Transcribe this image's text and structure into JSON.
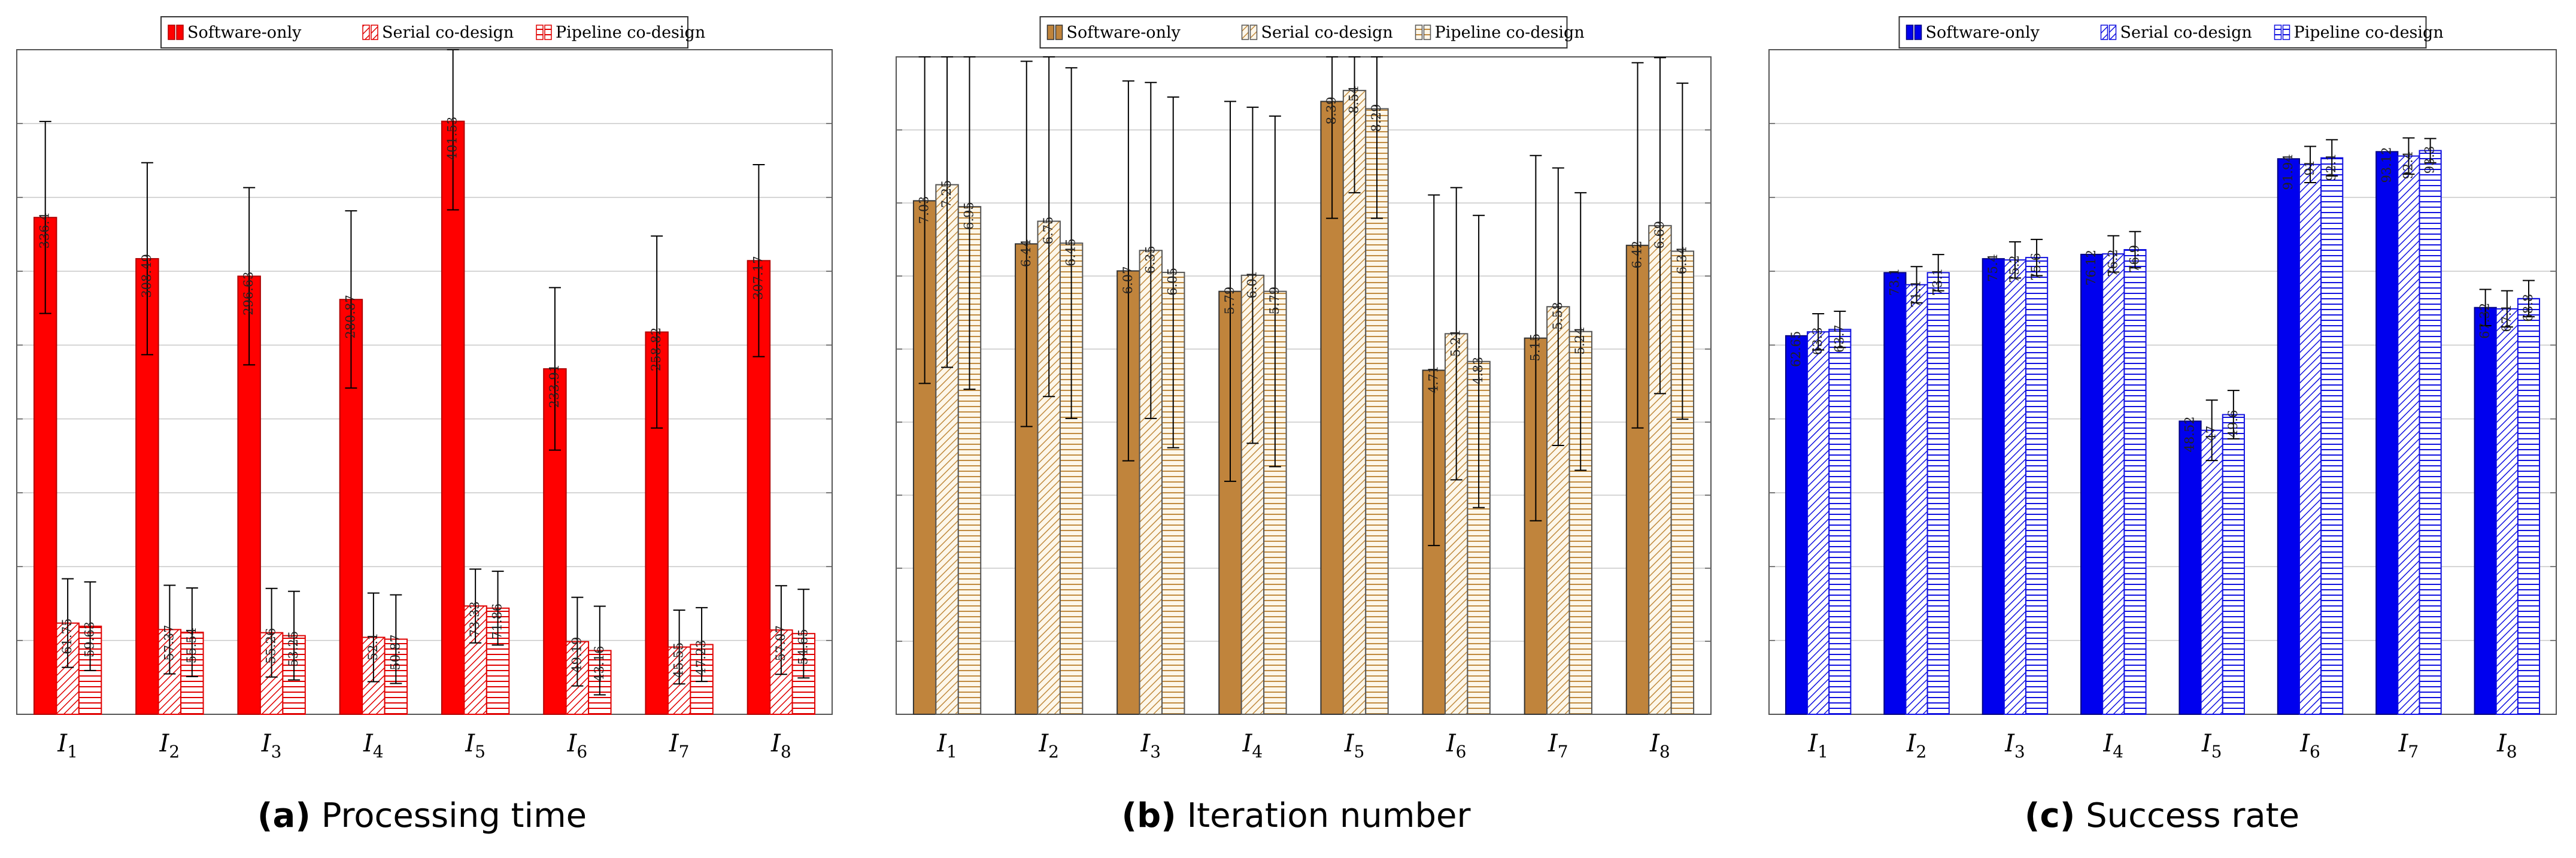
{
  "chart_data": [
    {
      "type": "bar",
      "caption_label": "(a)",
      "caption_title": "Processing time",
      "categories": [
        "I1",
        "I2",
        "I3",
        "I4",
        "I5",
        "I6",
        "I7",
        "I8"
      ],
      "legend": [
        "Software-only",
        "Serial co-design",
        "Pipeline co-design"
      ],
      "ylim": [
        0,
        450
      ],
      "series": [
        {
          "name": "Software-only",
          "values": [
            336.4,
            308.49,
            296.63,
            280.87,
            401.53,
            233.91,
            258.82,
            307.17
          ],
          "err": [
            65,
            65,
            60,
            60,
            60,
            55,
            65,
            65
          ]
        },
        {
          "name": "Serial co-design",
          "values": [
            61.75,
            57.37,
            55.26,
            52.1,
            73.33,
            49.19,
            45.55,
            57.07
          ],
          "err": [
            30,
            30,
            30,
            30,
            25,
            30,
            25,
            30
          ]
        },
        {
          "name": "Pipeline co-design",
          "values": [
            59.63,
            55.54,
            53.25,
            50.87,
            71.86,
            43.16,
            47.23,
            54.65
          ],
          "err": [
            30,
            30,
            30,
            30,
            25,
            30,
            25,
            30
          ]
        }
      ]
    },
    {
      "type": "bar",
      "caption_label": "(b)",
      "caption_title": "Iteration number",
      "categories": [
        "I1",
        "I2",
        "I3",
        "I4",
        "I5",
        "I6",
        "I7",
        "I8"
      ],
      "legend": [
        "Software-only",
        "Serial co-design",
        "Pipeline co-design"
      ],
      "ylim": [
        0,
        9
      ],
      "series": [
        {
          "name": "Software-only",
          "values": [
            7.03,
            6.44,
            6.07,
            5.79,
            8.39,
            4.71,
            5.15,
            6.42
          ],
          "err": [
            2.5,
            2.5,
            2.6,
            2.6,
            1.6,
            2.4,
            2.5,
            2.5
          ]
        },
        {
          "name": "Serial co-design",
          "values": [
            7.25,
            6.75,
            6.35,
            6.01,
            8.54,
            5.21,
            5.58,
            6.69
          ],
          "err": [
            2.5,
            2.4,
            2.3,
            2.3,
            1.4,
            2.0,
            1.9,
            2.3
          ]
        },
        {
          "name": "Pipeline co-design",
          "values": [
            6.95,
            6.45,
            6.05,
            5.79,
            8.29,
            4.83,
            5.24,
            6.34
          ],
          "err": [
            2.5,
            2.4,
            2.4,
            2.4,
            1.5,
            2.0,
            1.9,
            2.3
          ]
        }
      ]
    },
    {
      "type": "bar",
      "caption_label": "(c)",
      "caption_title": "Success rate",
      "categories": [
        "I1",
        "I2",
        "I3",
        "I4",
        "I5",
        "I6",
        "I7",
        "I8"
      ],
      "legend": [
        "Software-only",
        "Serial co-design",
        "Pipeline co-design"
      ],
      "ylim": [
        0,
        110
      ],
      "series": [
        {
          "name": "Software-only",
          "values": [
            62.65,
            73.1,
            75.4,
            76.12,
            48.52,
            91.94,
            93.12,
            67.32
          ],
          "err": [
            0,
            0,
            0,
            0,
            0,
            0,
            0,
            3
          ]
        },
        {
          "name": "Serial co-design",
          "values": [
            63.3,
            71.1,
            75.2,
            76.2,
            47,
            91,
            92.4,
            67.1
          ],
          "err": [
            3,
            3,
            3,
            3,
            5,
            3,
            3,
            3
          ]
        },
        {
          "name": "Pipeline co-design",
          "values": [
            63.7,
            73.1,
            75.6,
            76.9,
            49.6,
            92.1,
            93.3,
            68.8
          ],
          "err": [
            3,
            3,
            3,
            3,
            4,
            3,
            2,
            3
          ]
        }
      ]
    }
  ]
}
